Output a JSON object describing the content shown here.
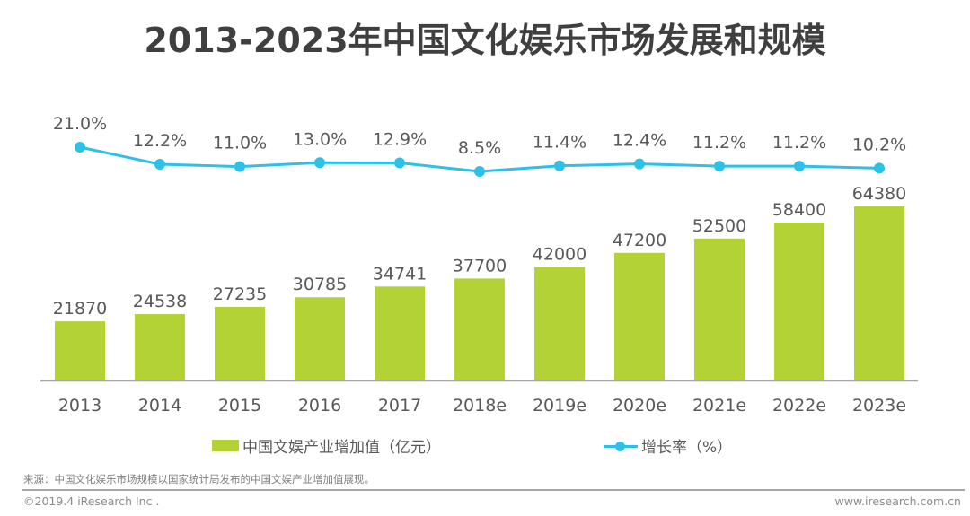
{
  "title": "2013-2023年中国文化娱乐市场发展和规模",
  "chart_data": {
    "type": "bar+line",
    "title": "2013-2023年中国文化娱乐市场发展和规模",
    "categories": [
      "2013",
      "2014",
      "2015",
      "2016",
      "2017",
      "2018e",
      "2019e",
      "2020e",
      "2021e",
      "2022e",
      "2023e"
    ],
    "series": [
      {
        "name": "中国文娱产业增加值（亿元）",
        "type": "bar",
        "color": "#b2d235",
        "values": [
          21870,
          24538,
          27235,
          30785,
          34741,
          37700,
          42000,
          47200,
          52500,
          58400,
          64380
        ],
        "labels": [
          "21870",
          "24538",
          "27235",
          "30785",
          "34741",
          "37700",
          "42000",
          "47200",
          "52500",
          "58400",
          "64380"
        ]
      },
      {
        "name": "增长率（%）",
        "type": "line",
        "color": "#2ec1e8",
        "values": [
          21.0,
          12.2,
          11.0,
          13.0,
          12.9,
          8.5,
          11.4,
          12.4,
          11.2,
          11.2,
          10.2
        ],
        "labels": [
          "21.0%",
          "12.2%",
          "11.0%",
          "13.0%",
          "12.9%",
          "8.5%",
          "11.4%",
          "12.4%",
          "11.2%",
          "11.2%",
          "10.2%"
        ]
      }
    ],
    "xlabel": "",
    "ylabel": "",
    "bar_ylim": [
      0,
      80000
    ],
    "grid": false,
    "legend_position": "bottom"
  },
  "legend": {
    "bar_label": "中国文娱产业增加值（亿元）",
    "line_label": "增长率（%）"
  },
  "footer": {
    "source": "来源：中国文化娱乐市场规模以国家统计局发布的中国文娱产业增加值展现。",
    "copyright": "©2019.4 iResearch Inc .",
    "website": "www.iresearch.com.cn"
  },
  "colors": {
    "bar": "#b2d235",
    "line": "#2ec1e8",
    "text": "#595959",
    "axis": "#a6a6a6"
  }
}
